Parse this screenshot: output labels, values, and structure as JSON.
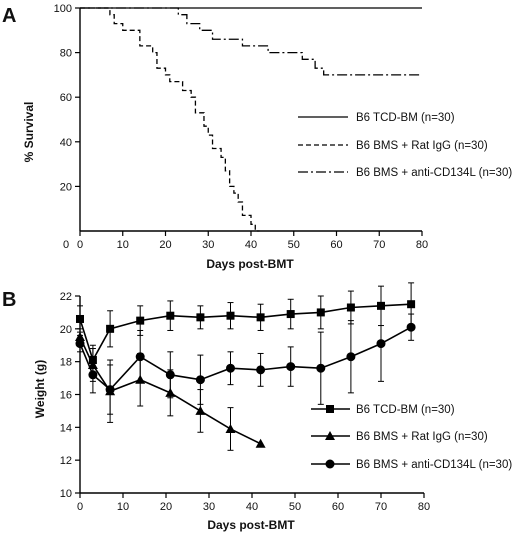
{
  "chart_data": [
    {
      "panel": "A",
      "type": "line",
      "step": true,
      "xlabel": "Days post-BMT",
      "ylabel": "% Survival",
      "xlim": [
        0,
        80
      ],
      "ylim": [
        0,
        100
      ],
      "xticks": [
        0,
        10,
        20,
        30,
        40,
        50,
        60,
        70,
        80
      ],
      "yticks": [
        20,
        40,
        60,
        80,
        100
      ],
      "legend": "center-right",
      "series": [
        {
          "name": "B6 TCD-BM (n=30)",
          "style": "solid",
          "x": [
            0,
            80
          ],
          "y": [
            100,
            100
          ]
        },
        {
          "name": "B6 BMS + Rat IgG (n=30)",
          "style": "dashed",
          "x": [
            0,
            7,
            8,
            10,
            14,
            17,
            18,
            20,
            21,
            24,
            26,
            27,
            29,
            30,
            31,
            33,
            34,
            35,
            36,
            37,
            38,
            40,
            41,
            42
          ],
          "y": [
            100,
            97,
            93,
            90,
            83,
            80,
            73,
            70,
            67,
            63,
            60,
            53,
            47,
            43,
            37,
            33,
            27,
            20,
            17,
            13,
            7,
            3,
            0,
            0
          ]
        },
        {
          "name": "B6 BMS + anti-CD134L (n=30)",
          "style": "dashdot",
          "x": [
            0,
            23,
            25,
            28,
            31,
            38,
            44,
            52,
            55,
            57,
            80
          ],
          "y": [
            100,
            97,
            93,
            90,
            86,
            83,
            80,
            77,
            73,
            70,
            70
          ]
        }
      ]
    },
    {
      "panel": "B",
      "type": "line",
      "error_bars": true,
      "xlabel": "Days post-BMT",
      "ylabel": "Weight (g)",
      "xlim": [
        0,
        80
      ],
      "ylim": [
        10,
        22
      ],
      "xticks": [
        0,
        10,
        20,
        30,
        40,
        50,
        60,
        70,
        80
      ],
      "yticks": [
        10,
        12,
        14,
        16,
        18,
        20,
        22
      ],
      "legend": "center-right",
      "series": [
        {
          "name": "B6 TCD-BM (n=30)",
          "marker": "square",
          "x": [
            0,
            3,
            7,
            14,
            21,
            28,
            35,
            42,
            49,
            56,
            63,
            70,
            77
          ],
          "y": [
            20.6,
            18.1,
            20.0,
            20.5,
            20.8,
            20.7,
            20.8,
            20.7,
            20.9,
            21.0,
            21.3,
            21.4,
            21.5
          ],
          "err": [
            0.8,
            0.9,
            1.1,
            0.9,
            0.9,
            0.7,
            0.8,
            0.8,
            0.9,
            1.0,
            1.0,
            1.2,
            1.3
          ]
        },
        {
          "name": "B6 BMS + Rat IgG (n=30)",
          "marker": "triangle",
          "x": [
            0,
            3,
            7,
            14,
            21,
            28,
            35,
            42
          ],
          "y": [
            19.5,
            17.8,
            16.2,
            16.9,
            16.1,
            15.0,
            13.9,
            13.0
          ],
          "err": [
            0.5,
            1.0,
            1.9,
            1.6,
            1.4,
            1.3,
            1.3,
            0
          ]
        },
        {
          "name": "B6 BMS + anti-CD134L (n=30)",
          "marker": "circle",
          "x": [
            0,
            3,
            7,
            14,
            21,
            28,
            35,
            42,
            49,
            56,
            63,
            70,
            77
          ],
          "y": [
            19.1,
            17.2,
            16.3,
            18.3,
            17.2,
            16.9,
            17.6,
            17.5,
            17.7,
            17.6,
            18.3,
            19.1,
            20.1
          ],
          "err": [
            0.5,
            1.1,
            1.5,
            1.6,
            1.4,
            1.5,
            1.0,
            1.0,
            1.2,
            2.2,
            2.2,
            2.3,
            0.8
          ]
        }
      ]
    }
  ]
}
